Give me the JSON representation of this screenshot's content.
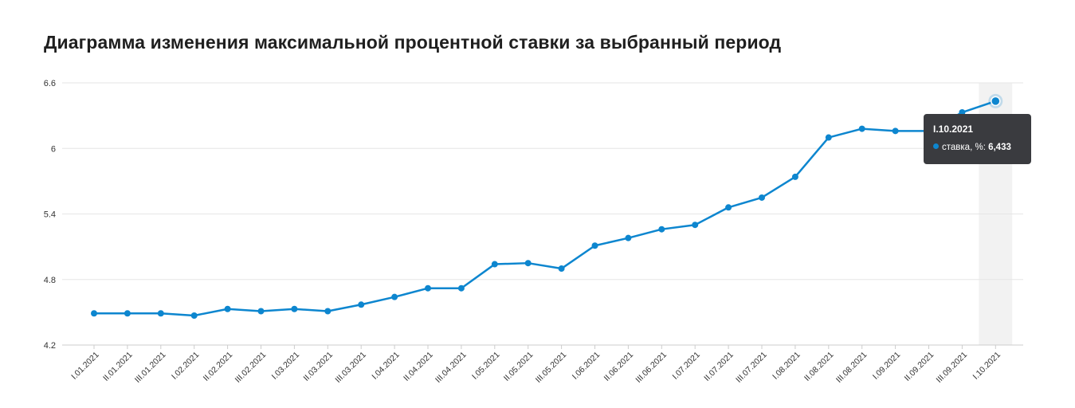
{
  "page": {
    "title": "Диаграмма изменения максимальной процентной ставки за выбранный период"
  },
  "colors": {
    "line": "#0d86cf",
    "highlight_band": "#f2f2f2",
    "grid": "#e6e6e6",
    "tooltip_bg": "#3a3b3f"
  },
  "tooltip": {
    "date": "I.10.2021",
    "series_label": "ставка, %:",
    "value": "6,433"
  },
  "chart_data": {
    "type": "line",
    "title": "Диаграмма изменения максимальной процентной ставки за выбранный период",
    "xlabel": "",
    "ylabel": "",
    "ylim": [
      4.2,
      6.6
    ],
    "yticks": [
      "4.2",
      "4.8",
      "5.4",
      "6",
      "6.6"
    ],
    "yticks_values": [
      4.2,
      4.8,
      5.4,
      6.0,
      6.6
    ],
    "grid": true,
    "legend": "none",
    "highlighted_category": "I.10.2021",
    "categories": [
      "I.01.2021",
      "II.01.2021",
      "III.01.2021",
      "I.02.2021",
      "II.02.2021",
      "III.02.2021",
      "I.03.2021",
      "II.03.2021",
      "III.03.2021",
      "I.04.2021",
      "II.04.2021",
      "III.04.2021",
      "I.05.2021",
      "II.05.2021",
      "III.05.2021",
      "I.06.2021",
      "II.06.2021",
      "III.06.2021",
      "I.07.2021",
      "II.07.2021",
      "III.07.2021",
      "I.08.2021",
      "II.08.2021",
      "III.08.2021",
      "I.09.2021",
      "II.09.2021",
      "III.09.2021",
      "I.10.2021"
    ],
    "values": [
      4.49,
      4.49,
      4.49,
      4.47,
      4.53,
      4.51,
      4.53,
      4.51,
      4.57,
      4.64,
      4.72,
      4.72,
      4.94,
      4.95,
      4.9,
      5.11,
      5.18,
      5.26,
      5.3,
      5.46,
      5.55,
      5.74,
      6.1,
      6.18,
      6.16,
      6.16,
      6.33,
      6.433
    ]
  }
}
